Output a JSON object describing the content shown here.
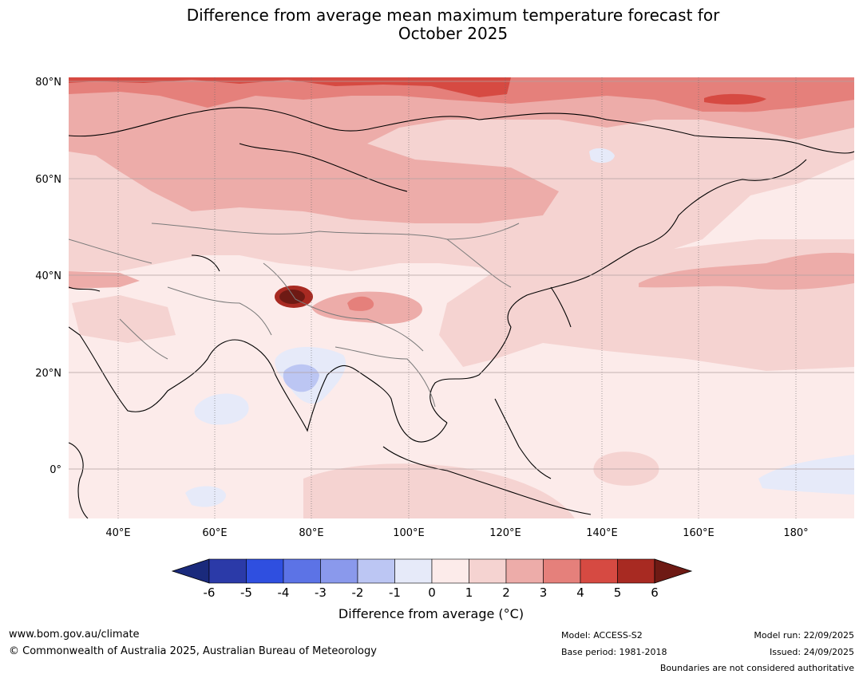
{
  "title_line1": "Difference from average mean maximum temperature forecast for",
  "title_line2": "October 2025",
  "lat_labels": [
    "80°N",
    "60°N",
    "40°N",
    "20°N",
    "0°"
  ],
  "lon_labels": [
    "40°E",
    "60°E",
    "80°E",
    "100°E",
    "120°E",
    "140°E",
    "160°E",
    "180°"
  ],
  "colorbar": {
    "ticks": [
      "-6",
      "-5",
      "-4",
      "-3",
      "-2",
      "-1",
      "0",
      "1",
      "2",
      "3",
      "4",
      "5",
      "6"
    ],
    "colors": [
      "#2b3aa8",
      "#2f4fe0",
      "#5c73e6",
      "#8a99ec",
      "#bcc6f3",
      "#e6eaf9",
      "#fcebea",
      "#f5d3d1",
      "#edaca9",
      "#e5807b",
      "#d64a42",
      "#a82a22"
    ],
    "under_color": "#1a2a7c",
    "over_color": "#6e1a14",
    "label": "Difference from average (°C)"
  },
  "footer": {
    "url": "www.bom.gov.au/climate",
    "copyright": "© Commonwealth of Australia 2025, Australian Bureau of Meteorology",
    "model": "Model: ACCESS-S2",
    "base_period": "Base period: 1981-2018",
    "model_run": "Model run: 22/09/2025",
    "issued": "Issued: 24/09/2025",
    "disclaimer": "Boundaries are not considered authoritative"
  }
}
